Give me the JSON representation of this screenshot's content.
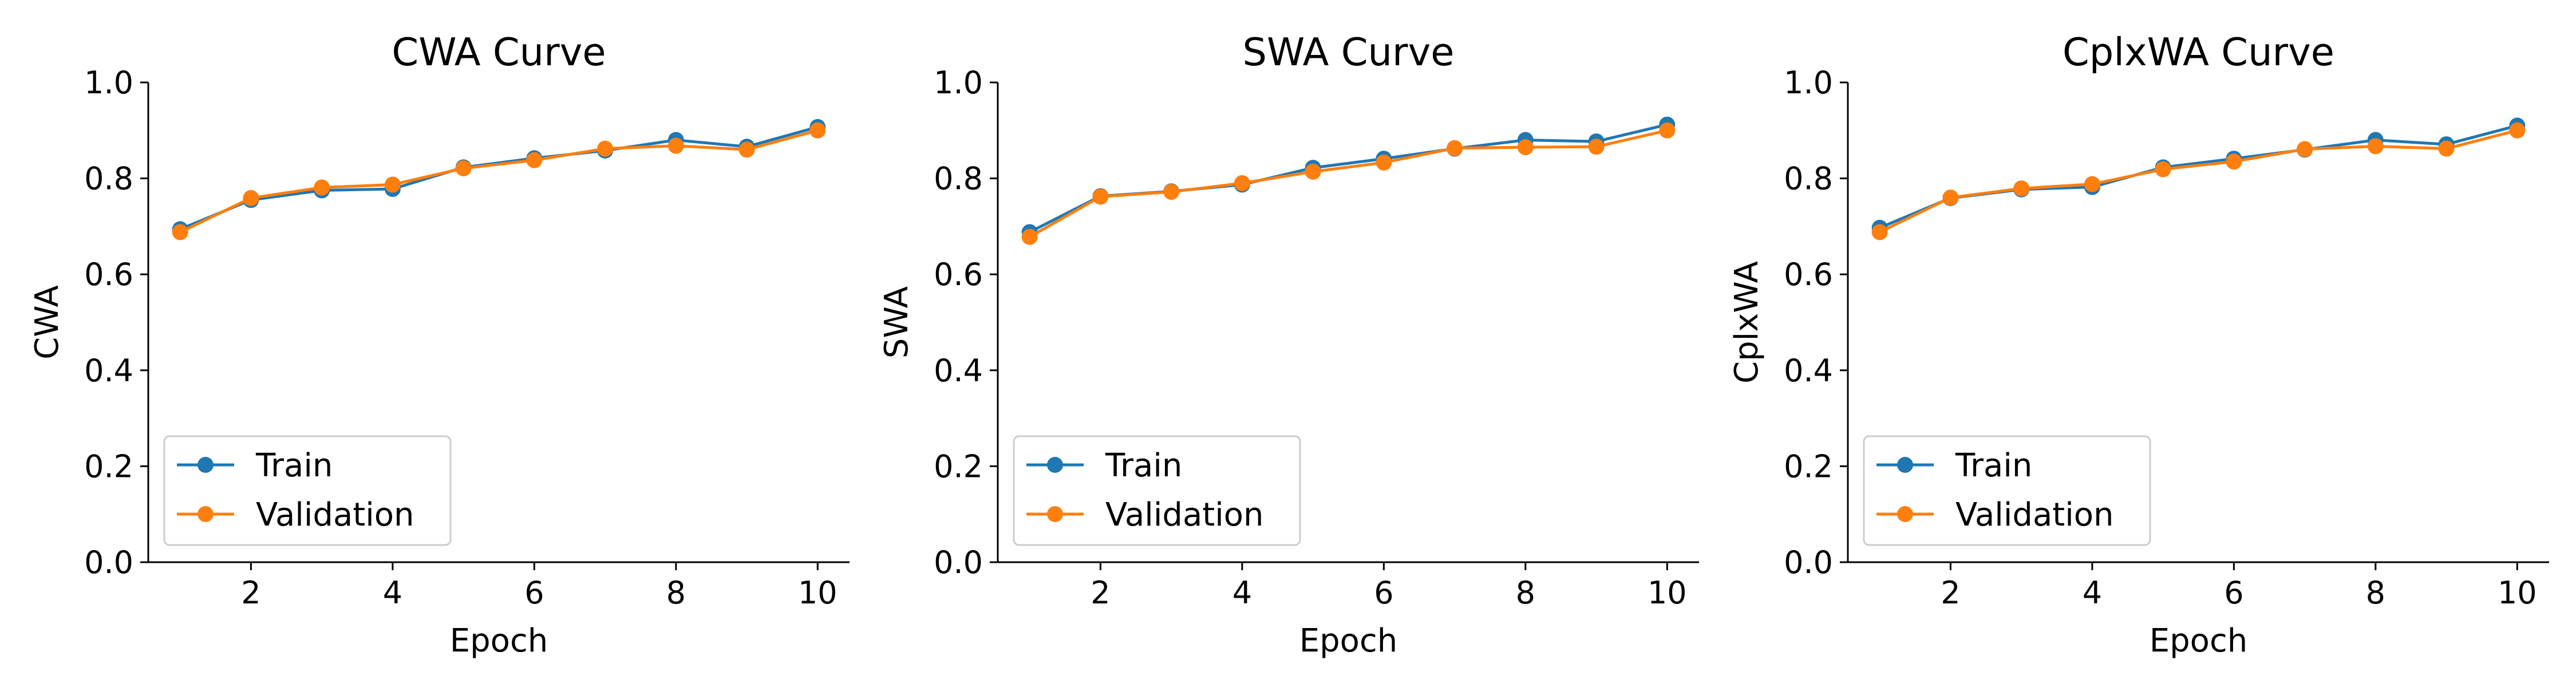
{
  "chart_data": [
    {
      "type": "line",
      "title": "CWA Curve",
      "xlabel": "Epoch",
      "ylabel": "CWA",
      "x": [
        1,
        2,
        3,
        4,
        5,
        6,
        7,
        8,
        9,
        10
      ],
      "xticks": [
        2,
        4,
        6,
        8,
        10
      ],
      "yticks": [
        0.0,
        0.2,
        0.4,
        0.6,
        0.8,
        1.0
      ],
      "xlim": [
        0.55,
        10.45
      ],
      "ylim": [
        0.0,
        1.0
      ],
      "grid": false,
      "legend_position": "lower-left",
      "series": [
        {
          "name": "Train",
          "color": "#1f77b4",
          "values": [
            0.694,
            0.755,
            0.775,
            0.778,
            0.823,
            0.842,
            0.858,
            0.88,
            0.866,
            0.907
          ]
        },
        {
          "name": "Validation",
          "color": "#ff7f0e",
          "values": [
            0.688,
            0.759,
            0.781,
            0.787,
            0.821,
            0.838,
            0.862,
            0.868,
            0.86,
            0.9
          ]
        }
      ]
    },
    {
      "type": "line",
      "title": "SWA Curve",
      "xlabel": "Epoch",
      "ylabel": "SWA",
      "x": [
        1,
        2,
        3,
        4,
        5,
        6,
        7,
        8,
        9,
        10
      ],
      "xticks": [
        2,
        4,
        6,
        8,
        10
      ],
      "yticks": [
        0.0,
        0.2,
        0.4,
        0.6,
        0.8,
        1.0
      ],
      "xlim": [
        0.55,
        10.45
      ],
      "ylim": [
        0.0,
        1.0
      ],
      "grid": false,
      "legend_position": "lower-left",
      "series": [
        {
          "name": "Train",
          "color": "#1f77b4",
          "values": [
            0.688,
            0.763,
            0.773,
            0.787,
            0.822,
            0.841,
            0.862,
            0.88,
            0.877,
            0.912
          ]
        },
        {
          "name": "Validation",
          "color": "#ff7f0e",
          "values": [
            0.678,
            0.762,
            0.772,
            0.79,
            0.814,
            0.833,
            0.863,
            0.865,
            0.866,
            0.9
          ]
        }
      ]
    },
    {
      "type": "line",
      "title": "CplxWA Curve",
      "xlabel": "Epoch",
      "ylabel": "CplxWA",
      "x": [
        1,
        2,
        3,
        4,
        5,
        6,
        7,
        8,
        9,
        10
      ],
      "xticks": [
        2,
        4,
        6,
        8,
        10
      ],
      "yticks": [
        0.0,
        0.2,
        0.4,
        0.6,
        0.8,
        1.0
      ],
      "xlim": [
        0.55,
        10.45
      ],
      "ylim": [
        0.0,
        1.0
      ],
      "grid": false,
      "legend_position": "lower-left",
      "series": [
        {
          "name": "Train",
          "color": "#1f77b4",
          "values": [
            0.697,
            0.759,
            0.777,
            0.782,
            0.823,
            0.841,
            0.86,
            0.88,
            0.871,
            0.91
          ]
        },
        {
          "name": "Validation",
          "color": "#ff7f0e",
          "values": [
            0.688,
            0.76,
            0.779,
            0.788,
            0.819,
            0.835,
            0.861,
            0.867,
            0.862,
            0.9
          ]
        }
      ]
    }
  ]
}
